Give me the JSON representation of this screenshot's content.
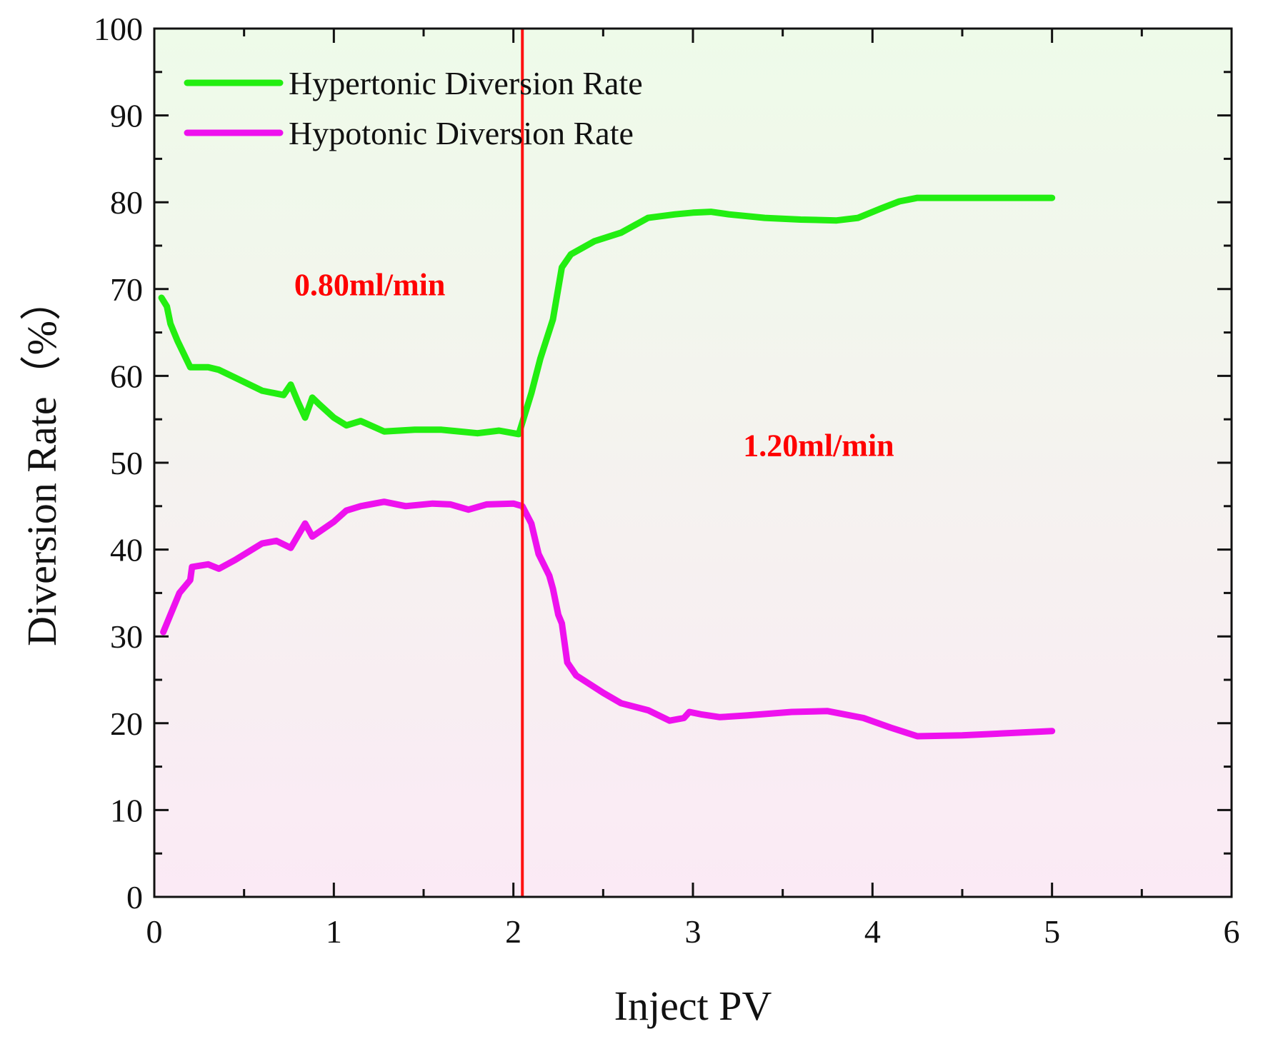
{
  "chart_data": {
    "type": "line",
    "title": "",
    "xlabel": "Inject PV",
    "ylabel": "Diversion Rate（%）",
    "xlim": [
      0,
      6
    ],
    "ylim": [
      0,
      100
    ],
    "x_ticks": [
      0,
      1,
      2,
      3,
      4,
      5,
      6
    ],
    "y_ticks": [
      0,
      10,
      20,
      30,
      40,
      50,
      60,
      70,
      80,
      90,
      100
    ],
    "grid": false,
    "legend_position": "top-left",
    "background_gradient": [
      "#eefbe9",
      "#fbeaf5"
    ],
    "series": [
      {
        "name": "Hypertonic Diversion Rate",
        "color": "#22ee11",
        "x": [
          0.04,
          0.07,
          0.09,
          0.13,
          0.2,
          0.3,
          0.36,
          0.45,
          0.6,
          0.72,
          0.76,
          0.8,
          0.84,
          0.88,
          0.92,
          1.0,
          1.07,
          1.15,
          1.28,
          1.45,
          1.6,
          1.8,
          1.92,
          2.03,
          2.1,
          2.15,
          2.22,
          2.27,
          2.32,
          2.45,
          2.6,
          2.75,
          2.9,
          3.0,
          3.1,
          3.2,
          3.4,
          3.6,
          3.8,
          3.92,
          4.05,
          4.15,
          4.25,
          4.5,
          4.8,
          5.0
        ],
        "y": [
          69,
          68,
          66,
          64,
          61,
          61,
          60.7,
          59.8,
          58.3,
          57.8,
          59,
          57,
          55.2,
          57.5,
          56.7,
          55.2,
          54.3,
          54.8,
          53.6,
          53.8,
          53.8,
          53.4,
          53.7,
          53.3,
          58,
          62,
          66.5,
          72.5,
          74,
          75.5,
          76.5,
          78.2,
          78.6,
          78.8,
          78.9,
          78.6,
          78.2,
          78,
          77.9,
          78.2,
          79.3,
          80.1,
          80.5,
          80.5,
          80.5,
          80.5
        ]
      },
      {
        "name": "Hypotonic Diversion Rate",
        "color": "#ee11ee",
        "x": [
          0.05,
          0.09,
          0.14,
          0.2,
          0.21,
          0.3,
          0.36,
          0.45,
          0.6,
          0.68,
          0.76,
          0.84,
          0.88,
          1.0,
          1.07,
          1.15,
          1.28,
          1.4,
          1.55,
          1.65,
          1.75,
          1.85,
          2.0,
          2.05,
          2.1,
          2.14,
          2.2,
          2.22,
          2.25,
          2.27,
          2.3,
          2.35,
          2.5,
          2.6,
          2.75,
          2.87,
          2.95,
          2.98,
          3.05,
          3.15,
          3.3,
          3.55,
          3.75,
          3.95,
          4.1,
          4.25,
          4.5,
          5.0
        ],
        "y": [
          30.5,
          32.5,
          35,
          36.5,
          38,
          38.3,
          37.8,
          38.8,
          40.7,
          41,
          40.2,
          43,
          41.5,
          43.2,
          44.5,
          45,
          45.5,
          45,
          45.3,
          45.2,
          44.6,
          45.2,
          45.3,
          45,
          43,
          39.5,
          37,
          35.5,
          32.5,
          31.5,
          27,
          25.5,
          23.5,
          22.3,
          21.5,
          20.3,
          20.6,
          21.3,
          21,
          20.7,
          20.9,
          21.3,
          21.4,
          20.6,
          19.5,
          18.5,
          18.6,
          19.1
        ]
      }
    ],
    "vertical_marker": {
      "x": 2.05,
      "color": "#ff1111"
    },
    "annotations": [
      {
        "text": "0.80ml/min",
        "x": 1.2,
        "y": 69.3,
        "color": "#ff0000"
      },
      {
        "text": "1.20ml/min",
        "x": 3.7,
        "y": 50.8,
        "color": "#ff0000"
      }
    ]
  }
}
